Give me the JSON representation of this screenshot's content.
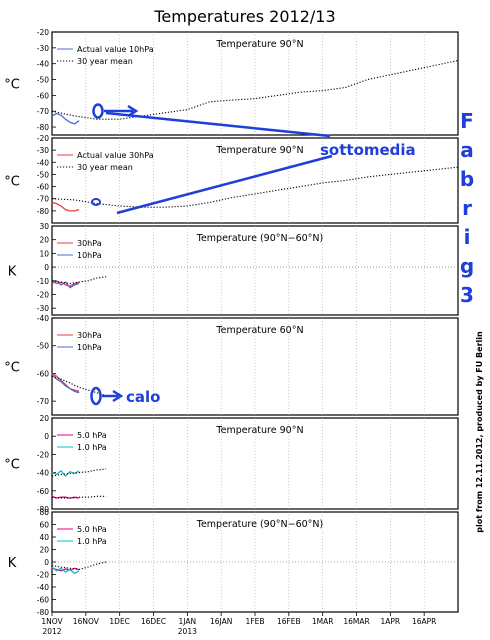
{
  "figure": {
    "title": "Temperatures 2012/13",
    "credit": "plot from 12.11.2012, produced by FU Berlin",
    "signature": [
      "F",
      "a",
      "b",
      "r",
      "i",
      "g",
      "3"
    ],
    "x_axis": {
      "ticks": [
        "1NOV",
        "16NOV",
        "1DEC",
        "16DEC",
        "1JAN",
        "16JAN",
        "1FEB",
        "16FEB",
        "1MAR",
        "16MAR",
        "1APR",
        "16APR"
      ],
      "year_labels": [
        "2012",
        "2013"
      ]
    },
    "annotations": [
      "sottomedia",
      "calo"
    ],
    "colors": {
      "red": "#ee3b3b",
      "blue": "#4a6cd4",
      "magenta": "#e6007e",
      "cyan": "#12b8c8",
      "annotation": "#1f3fd8",
      "mean": "#000000"
    }
  },
  "chart_data": [
    {
      "type": "line",
      "title": "Temperature 90°N",
      "ylabel": "°C",
      "ylim": [
        -85,
        -20
      ],
      "yticks": [
        -80,
        -70,
        -60,
        -50,
        -40,
        -30,
        -20
      ],
      "series": [
        {
          "name": "Actual value 10hPa",
          "color": "blue",
          "style": "solid",
          "x": [
            0,
            2,
            4,
            6,
            8,
            10,
            12
          ],
          "y": [
            -73,
            -71.5,
            -72.5,
            -75,
            -77,
            -78,
            -76
          ]
        },
        {
          "name": "30 year mean",
          "color": "mean",
          "style": "dotted",
          "x": [
            0,
            10,
            20,
            30,
            40,
            50,
            60,
            70,
            80,
            90,
            100,
            110,
            120,
            130,
            140,
            150,
            160,
            170,
            180
          ],
          "y": [
            -70,
            -73,
            -75,
            -75,
            -73,
            -71,
            -69,
            -64,
            -63,
            -62,
            -60,
            -58,
            -57,
            -55,
            -50,
            -47,
            -44,
            -41,
            -38
          ]
        }
      ]
    },
    {
      "type": "line",
      "title": "Temperature 90°N",
      "ylabel": "°C",
      "ylim": [
        -90,
        -20
      ],
      "yticks": [
        -80,
        -70,
        -60,
        -50,
        -40,
        -30,
        -20
      ],
      "series": [
        {
          "name": "Actual value 30hPa",
          "color": "red",
          "style": "solid",
          "x": [
            0,
            2,
            4,
            6,
            8,
            10,
            12
          ],
          "y": [
            -73,
            -74,
            -76,
            -79,
            -80,
            -80,
            -79
          ]
        },
        {
          "name": "30 year mean",
          "color": "mean",
          "style": "dotted",
          "x": [
            0,
            10,
            20,
            30,
            40,
            50,
            60,
            70,
            80,
            90,
            100,
            110,
            120,
            130,
            140,
            150,
            160,
            170,
            180
          ],
          "y": [
            -70,
            -71,
            -74,
            -76,
            -77,
            -77,
            -76,
            -73,
            -69,
            -66,
            -63,
            -60,
            -57,
            -55,
            -52,
            -50,
            -48,
            -46,
            -44
          ]
        }
      ]
    },
    {
      "type": "line",
      "title": "Temperature (90°N−60°N)",
      "ylabel": "K",
      "ylim": [
        -35,
        30
      ],
      "yticks": [
        -30,
        -20,
        -10,
        0,
        10,
        20,
        30
      ],
      "series": [
        {
          "name": "30hPa",
          "color": "red",
          "style": "solid",
          "x": [
            0,
            2,
            4,
            6,
            8,
            10,
            12
          ],
          "y": [
            -10,
            -12,
            -11,
            -13,
            -14,
            -12,
            -11
          ]
        },
        {
          "name": "10hPa",
          "color": "blue",
          "style": "solid",
          "x": [
            0,
            2,
            4,
            6,
            8,
            10,
            12
          ],
          "y": [
            -12,
            -10,
            -13,
            -11,
            -15,
            -13,
            -12
          ]
        },
        {
          "name": "",
          "color": "mean",
          "style": "dotted",
          "x": [
            0,
            4,
            8,
            12,
            16,
            20,
            24
          ],
          "y": [
            -10,
            -11,
            -12,
            -11,
            -10,
            -8,
            -7
          ]
        }
      ]
    },
    {
      "type": "line",
      "title": "Temperature 60°N",
      "ylabel": "°C",
      "ylim": [
        -75,
        -40
      ],
      "yticks": [
        -70,
        -60,
        -50,
        -40
      ],
      "series": [
        {
          "name": "30hPa",
          "color": "red",
          "style": "solid",
          "x": [
            0,
            2,
            4,
            6,
            8,
            10,
            12
          ],
          "y": [
            -60,
            -61,
            -62.5,
            -64,
            -65.5,
            -66,
            -66.5
          ]
        },
        {
          "name": "10hPa",
          "color": "blue",
          "style": "solid",
          "x": [
            0,
            2,
            4,
            6,
            8,
            10,
            12
          ],
          "y": [
            -60.5,
            -62,
            -63,
            -64.5,
            -65.5,
            -66.5,
            -67
          ]
        },
        {
          "name": "",
          "color": "mean",
          "style": "dotted",
          "x": [
            0,
            4,
            8,
            12,
            16,
            20,
            24
          ],
          "y": [
            -61,
            -62,
            -63.5,
            -65,
            -66,
            -67,
            -68
          ]
        }
      ]
    },
    {
      "type": "line",
      "title": "Temperature 90°N",
      "ylabel": "°C",
      "ylim": [
        -80,
        20
      ],
      "yticks": [
        -80,
        -60,
        -40,
        -20,
        0,
        20
      ],
      "series": [
        {
          "name": "5.0 hPa",
          "color": "magenta",
          "style": "solid",
          "x": [
            0,
            2,
            4,
            6,
            8,
            10,
            12
          ],
          "y": [
            -66,
            -68,
            -67,
            -67,
            -68,
            -67,
            -68
          ]
        },
        {
          "name": "1.0 hPa",
          "color": "cyan",
          "style": "solid",
          "x": [
            0,
            2,
            4,
            6,
            8,
            10,
            12
          ],
          "y": [
            -40,
            -42,
            -38,
            -44,
            -39,
            -41,
            -38
          ]
        },
        {
          "name": "",
          "color": "mean",
          "style": "dotted",
          "x": [
            0,
            4,
            8,
            12,
            16,
            20,
            24
          ],
          "y": [
            -44,
            -42,
            -41,
            -40,
            -39,
            -37,
            -36
          ]
        },
        {
          "name": "",
          "color": "mean",
          "style": "dotted",
          "x": [
            0,
            4,
            8,
            12,
            16,
            20,
            24
          ],
          "y": [
            -67,
            -68,
            -68,
            -67,
            -67,
            -66,
            -66
          ]
        }
      ]
    },
    {
      "type": "line",
      "title": "Temperature (90°N−60°N)",
      "ylabel": "K",
      "ylim": [
        -80,
        80
      ],
      "yticks": [
        -80,
        -60,
        -40,
        -20,
        0,
        20,
        40,
        60,
        80
      ],
      "series": [
        {
          "name": "5.0 hPa",
          "color": "magenta",
          "style": "solid",
          "x": [
            0,
            2,
            4,
            6,
            8,
            10,
            12
          ],
          "y": [
            -10,
            -12,
            -14,
            -11,
            -13,
            -10,
            -12
          ]
        },
        {
          "name": "1.0 hPa",
          "color": "cyan",
          "style": "solid",
          "x": [
            0,
            2,
            4,
            6,
            8,
            10,
            12
          ],
          "y": [
            -8,
            -14,
            -10,
            -16,
            -12,
            -18,
            -14
          ]
        },
        {
          "name": "",
          "color": "mean",
          "style": "dotted",
          "x": [
            0,
            4,
            8,
            12,
            16,
            20,
            24
          ],
          "y": [
            -6,
            -8,
            -10,
            -12,
            -8,
            -3,
            0
          ]
        }
      ]
    }
  ]
}
